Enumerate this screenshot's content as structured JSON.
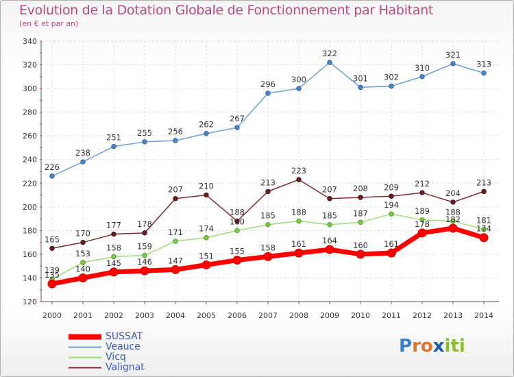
{
  "chart_data": {
    "type": "line",
    "title": "Evolution de la Dotation Globale de Fonctionnement par Habitant",
    "subtitle": "(en € et par an)",
    "xlabel": "",
    "ylabel": "",
    "x": [
      "2000",
      "2001",
      "2002",
      "2003",
      "2004",
      "2005",
      "2006",
      "2007",
      "2008",
      "2009",
      "2010",
      "2011",
      "2012",
      "2013",
      "2014"
    ],
    "ylim": [
      120,
      340
    ],
    "yticks": [
      "120",
      "140",
      "160",
      "180",
      "200",
      "220",
      "240",
      "260",
      "280",
      "300",
      "320",
      "340"
    ],
    "grid": true,
    "legend_position": "bottom-left",
    "series": [
      {
        "name": "SUSSAT",
        "color": "#ff0000",
        "values": [
          135,
          140,
          145,
          146,
          147,
          151,
          155,
          158,
          161,
          164,
          160,
          161,
          178,
          182,
          174
        ],
        "labels": [
          "135",
          "140",
          "145",
          "146",
          "147",
          "151",
          "155",
          "158",
          "161",
          "164",
          "160",
          "161",
          "178",
          "182",
          "174"
        ]
      },
      {
        "name": "Veauce",
        "color": "#6c9fd8",
        "values": [
          226,
          238,
          251,
          255,
          256,
          262,
          267,
          296,
          300,
          322,
          301,
          302,
          310,
          321,
          313
        ],
        "labels": [
          "226",
          "238",
          "251",
          "255",
          "256",
          "262",
          "267",
          "296",
          "300",
          "322",
          "301",
          "302",
          "310",
          "321",
          "313"
        ]
      },
      {
        "name": "Vicq",
        "color": "#9fdc79",
        "values": [
          139,
          153,
          158,
          159,
          171,
          174,
          180,
          185,
          188,
          185,
          187,
          194,
          189,
          188,
          181
        ],
        "labels": [
          "139",
          "153",
          "158",
          "159",
          "171",
          "174",
          "180",
          "185",
          "188",
          "185",
          "187",
          "194",
          "189",
          "188",
          "181"
        ]
      },
      {
        "name": "Valignat",
        "color": "#7b2a30",
        "values": [
          165,
          170,
          177,
          178,
          207,
          210,
          188,
          213,
          223,
          207,
          208,
          209,
          212,
          204,
          213
        ],
        "labels": [
          "165",
          "170",
          "177",
          "178",
          "207",
          "210",
          "188",
          "213",
          "223",
          "207",
          "208",
          "209",
          "212",
          "204",
          "213"
        ]
      }
    ]
  },
  "logo": {
    "letters": [
      "P",
      "r",
      "o",
      "x",
      "i",
      "ti"
    ]
  }
}
